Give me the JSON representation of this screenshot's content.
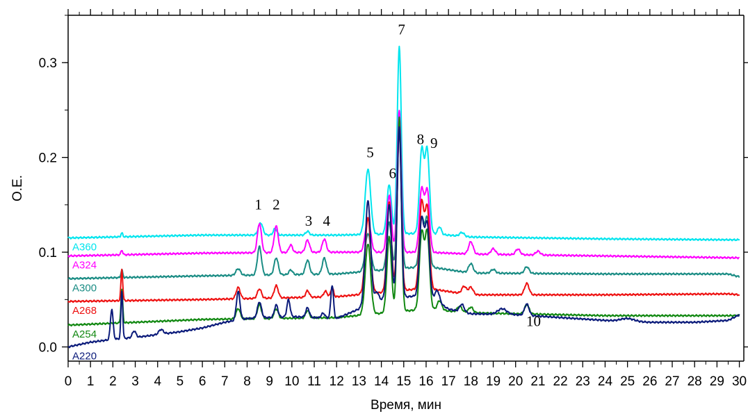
{
  "chart_data": {
    "type": "line",
    "title": "",
    "xlabel": "Время, мин",
    "ylabel": "О.Е.",
    "xlim": [
      0,
      30.2
    ],
    "ylim": [
      -0.015,
      0.35
    ],
    "x_ticks": [
      0,
      1,
      2,
      3,
      4,
      5,
      6,
      7,
      8,
      9,
      10,
      11,
      12,
      13,
      14,
      15,
      16,
      17,
      18,
      19,
      20,
      21,
      22,
      23,
      24,
      25,
      26,
      27,
      28,
      29,
      30
    ],
    "y_ticks": [
      0.0,
      0.1,
      0.2,
      0.3
    ],
    "y_tick_labels": [
      "0.0",
      "0.1",
      "0.2",
      "0.3"
    ],
    "grid": false,
    "legend": "series labels at left end of each trace",
    "series": [
      {
        "name": "A360",
        "color": "#00e5ee",
        "baseline": [
          [
            0,
            0.115
          ],
          [
            6,
            0.118
          ],
          [
            12,
            0.118
          ],
          [
            16,
            0.12
          ],
          [
            18,
            0.116
          ],
          [
            24,
            0.114
          ],
          [
            30,
            0.113
          ]
        ],
        "peaks": [
          [
            2.4,
            0.004,
            0.04
          ],
          [
            8.6,
            0.013,
            0.1
          ],
          [
            9.25,
            0.007,
            0.08
          ],
          [
            10.7,
            0.004,
            0.08
          ],
          [
            13.4,
            0.069,
            0.12
          ],
          [
            14.35,
            0.052,
            0.1
          ],
          [
            14.8,
            0.197,
            0.09
          ],
          [
            15.8,
            0.087,
            0.1
          ],
          [
            16.05,
            0.087,
            0.1
          ],
          [
            16.6,
            0.008,
            0.08
          ],
          [
            17.6,
            0.004,
            0.1
          ]
        ]
      },
      {
        "name": "A324",
        "color": "#ff00ff",
        "baseline": [
          [
            0,
            0.096
          ],
          [
            6,
            0.099
          ],
          [
            12,
            0.1
          ],
          [
            16,
            0.1
          ],
          [
            18,
            0.098
          ],
          [
            24,
            0.096
          ],
          [
            30,
            0.094
          ]
        ],
        "peaks": [
          [
            2.4,
            0.005,
            0.04
          ],
          [
            8.55,
            0.031,
            0.09
          ],
          [
            9.3,
            0.028,
            0.09
          ],
          [
            9.95,
            0.008,
            0.08
          ],
          [
            10.7,
            0.013,
            0.09
          ],
          [
            11.45,
            0.014,
            0.09
          ],
          [
            13.4,
            0.035,
            0.12
          ],
          [
            14.35,
            0.06,
            0.1
          ],
          [
            14.8,
            0.15,
            0.09
          ],
          [
            15.8,
            0.066,
            0.1
          ],
          [
            16.05,
            0.065,
            0.1
          ],
          [
            18.0,
            0.013,
            0.1
          ],
          [
            19.0,
            0.006,
            0.1
          ],
          [
            20.1,
            0.006,
            0.1
          ],
          [
            21.0,
            0.004,
            0.1
          ]
        ]
      },
      {
        "name": "A300",
        "color": "#1a8c84",
        "baseline": [
          [
            0,
            0.072
          ],
          [
            6,
            0.075
          ],
          [
            12,
            0.077
          ],
          [
            16,
            0.085
          ],
          [
            18,
            0.078
          ],
          [
            24,
            0.077
          ],
          [
            29.5,
            0.077
          ],
          [
            30,
            0.074
          ]
        ],
        "peaks": [
          [
            2.4,
            0.008,
            0.04
          ],
          [
            7.6,
            0.007,
            0.1
          ],
          [
            8.55,
            0.03,
            0.09
          ],
          [
            9.3,
            0.018,
            0.09
          ],
          [
            9.95,
            0.005,
            0.08
          ],
          [
            10.7,
            0.015,
            0.09
          ],
          [
            11.45,
            0.017,
            0.09
          ],
          [
            13.4,
            0.04,
            0.12
          ],
          [
            14.35,
            0.05,
            0.1
          ],
          [
            14.8,
            0.155,
            0.09
          ],
          [
            15.8,
            0.05,
            0.1
          ],
          [
            16.05,
            0.05,
            0.1
          ],
          [
            18.0,
            0.01,
            0.1
          ],
          [
            19.0,
            0.004,
            0.1
          ],
          [
            20.5,
            0.007,
            0.1
          ]
        ]
      },
      {
        "name": "A268",
        "color": "#ee1111",
        "baseline": [
          [
            0,
            0.048
          ],
          [
            6,
            0.05
          ],
          [
            12,
            0.053
          ],
          [
            16,
            0.062
          ],
          [
            18,
            0.055
          ],
          [
            24,
            0.055
          ],
          [
            29.5,
            0.056
          ],
          [
            30,
            0.055
          ]
        ],
        "peaks": [
          [
            2.4,
            0.033,
            0.04
          ],
          [
            7.6,
            0.012,
            0.09
          ],
          [
            8.55,
            0.01,
            0.09
          ],
          [
            9.3,
            0.013,
            0.09
          ],
          [
            10.7,
            0.007,
            0.08
          ],
          [
            11.5,
            0.006,
            0.08
          ],
          [
            11.8,
            0.01,
            0.06
          ],
          [
            13.4,
            0.08,
            0.12
          ],
          [
            14.35,
            0.095,
            0.1
          ],
          [
            14.8,
            0.17,
            0.09
          ],
          [
            15.8,
            0.09,
            0.1
          ],
          [
            16.05,
            0.085,
            0.1
          ],
          [
            17.7,
            0.008,
            0.1
          ],
          [
            18.0,
            0.008,
            0.1
          ],
          [
            20.5,
            0.012,
            0.1
          ]
        ]
      },
      {
        "name": "A254",
        "color": "#118811",
        "baseline": [
          [
            0,
            0.023
          ],
          [
            6,
            0.029
          ],
          [
            12,
            0.031
          ],
          [
            16,
            0.04
          ],
          [
            18,
            0.036
          ],
          [
            24,
            0.033
          ],
          [
            30,
            0.033
          ]
        ],
        "peaks": [
          [
            2.4,
            0.035,
            0.04
          ],
          [
            7.6,
            0.011,
            0.09
          ],
          [
            8.55,
            0.015,
            0.09
          ],
          [
            9.3,
            0.01,
            0.09
          ],
          [
            10.7,
            0.008,
            0.08
          ],
          [
            13.4,
            0.075,
            0.12
          ],
          [
            14.35,
            0.08,
            0.1
          ],
          [
            14.8,
            0.205,
            0.09
          ],
          [
            15.8,
            0.08,
            0.1
          ],
          [
            16.05,
            0.08,
            0.1
          ],
          [
            16.6,
            0.01,
            0.1
          ],
          [
            17.5,
            0.006,
            0.1
          ],
          [
            18.0,
            0.006,
            0.1
          ],
          [
            20.5,
            0.01,
            0.1
          ]
        ]
      },
      {
        "name": "A220",
        "color": "#0a1a7a",
        "baseline": [
          [
            0,
            0.0
          ],
          [
            1,
            0.005
          ],
          [
            2,
            0.008
          ],
          [
            3,
            0.01
          ],
          [
            4,
            0.013
          ],
          [
            5,
            0.016
          ],
          [
            6,
            0.02
          ],
          [
            7,
            0.026
          ],
          [
            8,
            0.03
          ],
          [
            10,
            0.032
          ],
          [
            12,
            0.03
          ],
          [
            13,
            0.04
          ],
          [
            14,
            0.05
          ],
          [
            16,
            0.055
          ],
          [
            17,
            0.04
          ],
          [
            18,
            0.035
          ],
          [
            20,
            0.034
          ],
          [
            22,
            0.031
          ],
          [
            24,
            0.028
          ],
          [
            26,
            0.026
          ],
          [
            28,
            0.026
          ],
          [
            29.5,
            0.028
          ],
          [
            30,
            0.034
          ]
        ],
        "peaks": [
          [
            1.95,
            0.032,
            0.06
          ],
          [
            2.4,
            0.05,
            0.04
          ],
          [
            2.95,
            0.007,
            0.08
          ],
          [
            4.15,
            0.005,
            0.1
          ],
          [
            7.6,
            0.03,
            0.08
          ],
          [
            8.55,
            0.017,
            0.09
          ],
          [
            9.3,
            0.013,
            0.08
          ],
          [
            9.85,
            0.018,
            0.07
          ],
          [
            10.7,
            0.01,
            0.08
          ],
          [
            11.4,
            0.005,
            0.08
          ],
          [
            11.8,
            0.035,
            0.06
          ],
          [
            13.4,
            0.11,
            0.12
          ],
          [
            13.8,
            0.01,
            0.08
          ],
          [
            14.35,
            0.1,
            0.1
          ],
          [
            14.8,
            0.18,
            0.09
          ],
          [
            15.8,
            0.08,
            0.1
          ],
          [
            16.05,
            0.075,
            0.1
          ],
          [
            16.5,
            0.012,
            0.1
          ],
          [
            17.6,
            0.008,
            0.1
          ],
          [
            19.4,
            0.006,
            0.2
          ],
          [
            20.5,
            0.012,
            0.1
          ],
          [
            25.0,
            0.003,
            0.3
          ]
        ]
      }
    ],
    "annotations": [
      {
        "text": "1",
        "x": 8.5,
        "y": 0.145
      },
      {
        "text": "2",
        "x": 9.3,
        "y": 0.145
      },
      {
        "text": "3",
        "x": 10.75,
        "y": 0.128
      },
      {
        "text": "4",
        "x": 11.55,
        "y": 0.128
      },
      {
        "text": "5",
        "x": 13.5,
        "y": 0.2
      },
      {
        "text": "6",
        "x": 14.5,
        "y": 0.178
      },
      {
        "text": "7",
        "x": 14.9,
        "y": 0.33
      },
      {
        "text": "8",
        "x": 15.75,
        "y": 0.214
      },
      {
        "text": "9",
        "x": 16.35,
        "y": 0.21
      },
      {
        "text": "10",
        "x": 20.8,
        "y": 0.022
      }
    ]
  }
}
